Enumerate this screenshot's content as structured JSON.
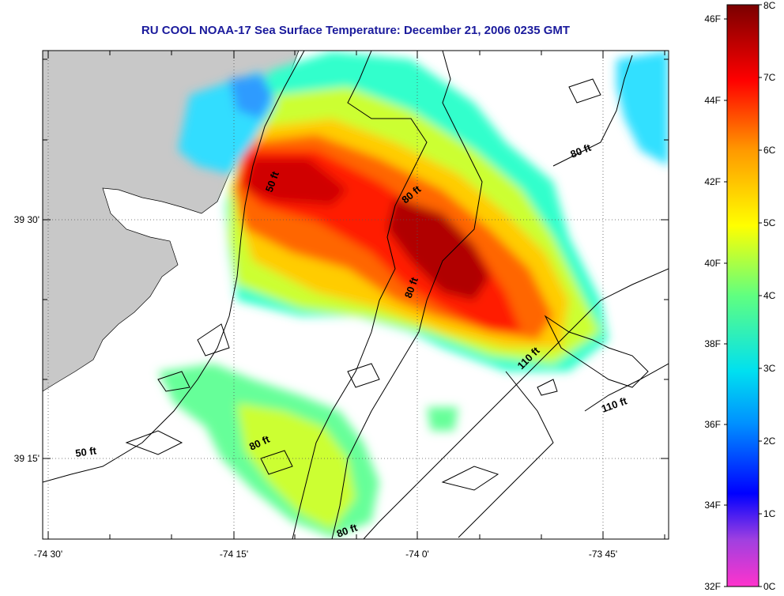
{
  "title": "RU COOL  NOAA-17  Sea Surface Temperature:  December 21, 2006 0235 GMT",
  "axes": {
    "x_ticks": [
      {
        "label": "-74 30'"
      },
      {
        "label": "-74 15'"
      },
      {
        "label": "-74 0'"
      },
      {
        "label": "-73 45'"
      }
    ],
    "y_ticks": [
      {
        "label": "39 30'"
      },
      {
        "label": "39 15'"
      }
    ]
  },
  "contours": [
    {
      "label": "50 ft"
    },
    {
      "label": "80 ft"
    },
    {
      "label": "80 ft"
    },
    {
      "label": "80 ft"
    },
    {
      "label": "80 ft"
    },
    {
      "label": "110 ft"
    },
    {
      "label": "110 ft"
    },
    {
      "label": "50 ft"
    },
    {
      "label": "80 ft"
    }
  ],
  "colorbar": {
    "min_c": 0,
    "max_c": 8,
    "celsius_labels": [
      "8C",
      "7C",
      "6C",
      "5C",
      "4C",
      "3C",
      "2C",
      "1C",
      "0C"
    ],
    "fahrenheit_labels": [
      "46F",
      "44F",
      "42F",
      "40F",
      "38F",
      "36F",
      "34F",
      "32F"
    ],
    "colors": [
      "#ff33cc",
      "#8b2be2",
      "#0000ff",
      "#00ccff",
      "#33ff99",
      "#ffff00",
      "#ff9900",
      "#ff0000",
      "#800000"
    ]
  },
  "colors": {
    "land": "#c8c8c8",
    "title": "#1a1a9c"
  }
}
